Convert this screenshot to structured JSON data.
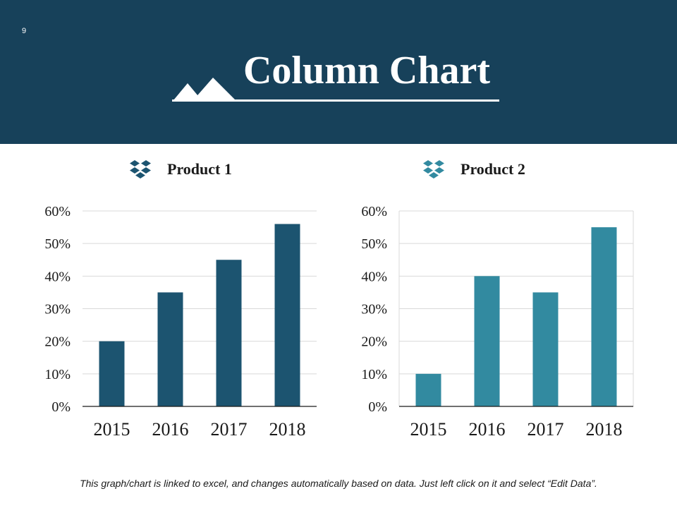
{
  "slide": {
    "number": "9",
    "title": "Column Chart"
  },
  "footnote": "This graph/chart is linked to excel, and changes automatically based on data. Just left click on it and select “Edit Data”.",
  "colors": {
    "header_bg": "#17415a",
    "product1": "#1c5470",
    "product2": "#328aa0"
  },
  "icons": {
    "header": "mountain-icon",
    "legend": "dropbox-icon"
  },
  "chart_data": [
    {
      "type": "bar",
      "title": "Product 1",
      "categories": [
        "2015",
        "2016",
        "2017",
        "2018"
      ],
      "values": [
        20,
        35,
        45,
        56
      ],
      "yticks": [
        "0%",
        "10%",
        "20%",
        "30%",
        "40%",
        "50%",
        "60%"
      ],
      "ylim": [
        0,
        60
      ],
      "xlabel": "",
      "ylabel": "",
      "grid": true,
      "color": "#1c5470"
    },
    {
      "type": "bar",
      "title": "Product 2",
      "categories": [
        "2015",
        "2016",
        "2017",
        "2018"
      ],
      "values": [
        10,
        40,
        35,
        55
      ],
      "yticks": [
        "0%",
        "10%",
        "20%",
        "30%",
        "40%",
        "50%",
        "60%"
      ],
      "ylim": [
        0,
        60
      ],
      "xlabel": "",
      "ylabel": "",
      "grid": true,
      "color": "#328aa0"
    }
  ]
}
